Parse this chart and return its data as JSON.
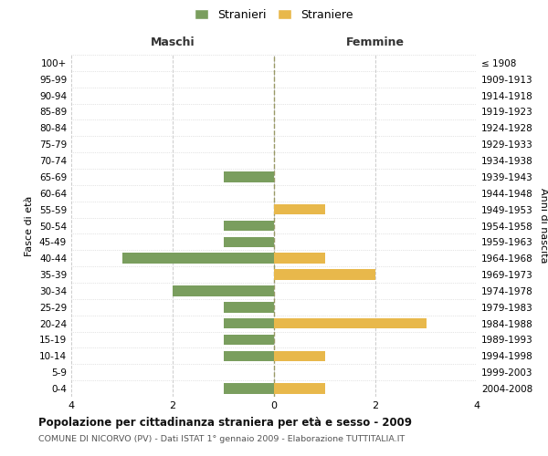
{
  "age_groups": [
    "100+",
    "95-99",
    "90-94",
    "85-89",
    "80-84",
    "75-79",
    "70-74",
    "65-69",
    "60-64",
    "55-59",
    "50-54",
    "45-49",
    "40-44",
    "35-39",
    "30-34",
    "25-29",
    "20-24",
    "15-19",
    "10-14",
    "5-9",
    "0-4"
  ],
  "birth_years": [
    "≤ 1908",
    "1909-1913",
    "1914-1918",
    "1919-1923",
    "1924-1928",
    "1929-1933",
    "1934-1938",
    "1939-1943",
    "1944-1948",
    "1949-1953",
    "1954-1958",
    "1959-1963",
    "1964-1968",
    "1969-1973",
    "1974-1978",
    "1979-1983",
    "1984-1988",
    "1989-1993",
    "1994-1998",
    "1999-2003",
    "2004-2008"
  ],
  "maschi": [
    0,
    0,
    0,
    0,
    0,
    0,
    0,
    1,
    0,
    0,
    1,
    1,
    3,
    0,
    2,
    1,
    1,
    1,
    1,
    0,
    1
  ],
  "femmine": [
    0,
    0,
    0,
    0,
    0,
    0,
    0,
    0,
    0,
    1,
    0,
    0,
    1,
    2,
    0,
    0,
    3,
    0,
    1,
    0,
    1
  ],
  "maschi_color": "#7a9e5e",
  "femmine_color": "#e8b84b",
  "title": "Popolazione per cittadinanza straniera per età e sesso - 2009",
  "subtitle": "COMUNE DI NICORVO (PV) - Dati ISTAT 1° gennaio 2009 - Elaborazione TUTTITALIA.IT",
  "header_left": "Maschi",
  "header_right": "Femmine",
  "ylabel_left": "Fasce di età",
  "ylabel_right": "Anni di nascita",
  "legend_maschi": "Stranieri",
  "legend_femmine": "Straniere",
  "xlim": 4,
  "background_color": "#ffffff",
  "grid_color": "#cccccc",
  "grid_style": "--",
  "bar_height": 0.65
}
